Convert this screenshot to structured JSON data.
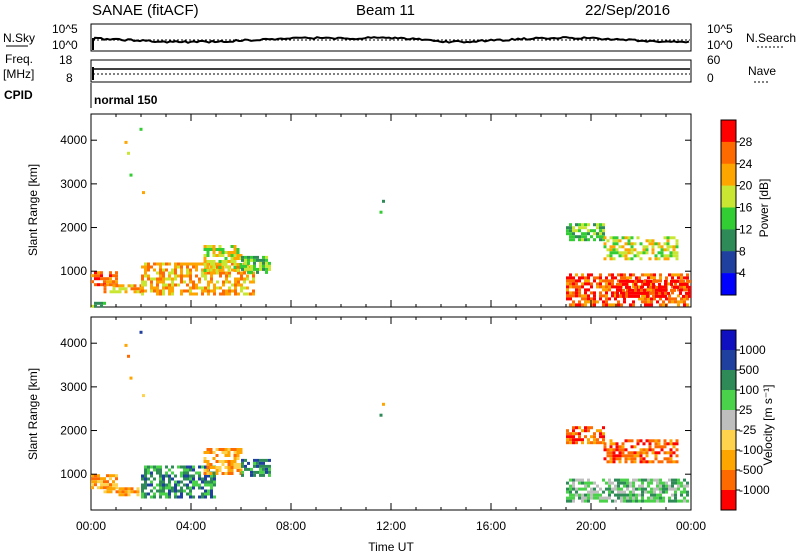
{
  "header": {
    "station": "SANAE (fitACF)",
    "beam": "Beam 11",
    "date": "22/Sep/2016"
  },
  "top_panels": {
    "nsky_label": "N.Sky",
    "nsky_ticks": [
      "10^5",
      "10^0"
    ],
    "nsearch_label": "N.Search",
    "nsearch_ticks": [
      "10^5",
      "10^0"
    ],
    "freq_label": "Freq.",
    "freq_unit": "[MHz]",
    "freq_ticks": [
      "18",
      "8"
    ],
    "nave_label": "Nave",
    "nave_ticks": [
      "60",
      "0"
    ],
    "cpid_label": "CPID",
    "cpid_text": "normal 150"
  },
  "chart_data": [
    {
      "type": "heatmap",
      "name": "power-panel",
      "ylabel": "Slant Range [km]",
      "yticks": [
        1000,
        2000,
        3000,
        4000
      ],
      "ylim": [
        180,
        4600
      ],
      "xlim": [
        0,
        24
      ],
      "colorbar_label": "Power [dB]",
      "colorbar_ticks": [
        "28",
        "24",
        "20",
        "16",
        "12",
        "8",
        "4"
      ],
      "colors": [
        "#0000ff",
        "#2040a0",
        "#2e8b57",
        "#32cd32",
        "#c8e632",
        "#ffa500",
        "#ff6a00",
        "#ff0000"
      ],
      "regions": [
        {
          "t": [
            0.0,
            1.0
          ],
          "r": [
            700,
            1000
          ],
          "level": 6
        },
        {
          "t": [
            0.0,
            0.5
          ],
          "r": [
            180,
            300
          ],
          "level": 3
        },
        {
          "t": [
            0.5,
            2.0
          ],
          "r": [
            500,
            700
          ],
          "level": 5
        },
        {
          "t": [
            2.0,
            6.5
          ],
          "r": [
            500,
            1200
          ],
          "level": 5
        },
        {
          "t": [
            4.5,
            6.0
          ],
          "r": [
            1000,
            1600
          ],
          "level": 4
        },
        {
          "t": [
            6.0,
            7.2
          ],
          "r": [
            1000,
            1350
          ],
          "level": 3
        },
        {
          "t": [
            19.0,
            20.5
          ],
          "r": [
            1700,
            2100
          ],
          "level": 3
        },
        {
          "t": [
            20.5,
            23.5
          ],
          "r": [
            1300,
            1800
          ],
          "level": 4
        },
        {
          "t": [
            19.0,
            23.9
          ],
          "r": [
            250,
            950
          ],
          "level": 6
        },
        {
          "t": [
            21.0,
            23.9
          ],
          "r": [
            400,
            800
          ],
          "level": 7
        }
      ],
      "points": [
        {
          "t": 1.4,
          "r": 3950,
          "level": 5
        },
        {
          "t": 1.5,
          "r": 3700,
          "level": 4
        },
        {
          "t": 1.6,
          "r": 3200,
          "level": 3
        },
        {
          "t": 2.0,
          "r": 4250,
          "level": 3
        },
        {
          "t": 2.1,
          "r": 2800,
          "level": 5
        },
        {
          "t": 11.7,
          "r": 2600,
          "level": 2
        },
        {
          "t": 11.6,
          "r": 2350,
          "level": 3
        }
      ]
    },
    {
      "type": "heatmap",
      "name": "velocity-panel",
      "ylabel": "Slant Range [km]",
      "yticks": [
        1000,
        2000,
        3000,
        4000
      ],
      "ylim": [
        180,
        4600
      ],
      "xlim": [
        0,
        24
      ],
      "xticks": [
        "00:00",
        "04:00",
        "08:00",
        "12:00",
        "16:00",
        "20:00",
        "00:00"
      ],
      "xlabel": "Time UT",
      "colorbar_label": "Velocity [m s⁻¹]",
      "colorbar_ticks": [
        "1000",
        "500",
        "100",
        "25",
        "-25",
        "-100",
        "-500",
        "-1000"
      ],
      "colors": [
        "#ff0000",
        "#ff6a00",
        "#ffa500",
        "#ffd24d",
        "#bebebe",
        "#4bd24b",
        "#2e8b57",
        "#2040a0",
        "#1010c0"
      ],
      "regions": [
        {
          "t": [
            0.0,
            1.0
          ],
          "r": [
            700,
            1000
          ],
          "level": 2
        },
        {
          "t": [
            0.5,
            2.0
          ],
          "r": [
            500,
            700
          ],
          "level": 2
        },
        {
          "t": [
            2.0,
            5.0
          ],
          "r": [
            500,
            1200
          ],
          "level": 6
        },
        {
          "t": [
            4.5,
            6.0
          ],
          "r": [
            1000,
            1600
          ],
          "level": 2
        },
        {
          "t": [
            6.0,
            7.2
          ],
          "r": [
            1000,
            1350
          ],
          "level": 6
        },
        {
          "t": [
            19.0,
            20.5
          ],
          "r": [
            1700,
            2100
          ],
          "level": 1
        },
        {
          "t": [
            20.5,
            23.5
          ],
          "r": [
            1300,
            1800
          ],
          "level": 1
        },
        {
          "t": [
            19.0,
            23.9
          ],
          "r": [
            400,
            900
          ],
          "level": 5
        }
      ],
      "points": [
        {
          "t": 1.4,
          "r": 3950,
          "level": 2
        },
        {
          "t": 1.5,
          "r": 3700,
          "level": 1
        },
        {
          "t": 1.6,
          "r": 3200,
          "level": 2
        },
        {
          "t": 2.0,
          "r": 4250,
          "level": 7
        },
        {
          "t": 2.1,
          "r": 2800,
          "level": 3
        },
        {
          "t": 11.7,
          "r": 2600,
          "level": 2
        },
        {
          "t": 11.6,
          "r": 2350,
          "level": 6
        }
      ]
    }
  ]
}
